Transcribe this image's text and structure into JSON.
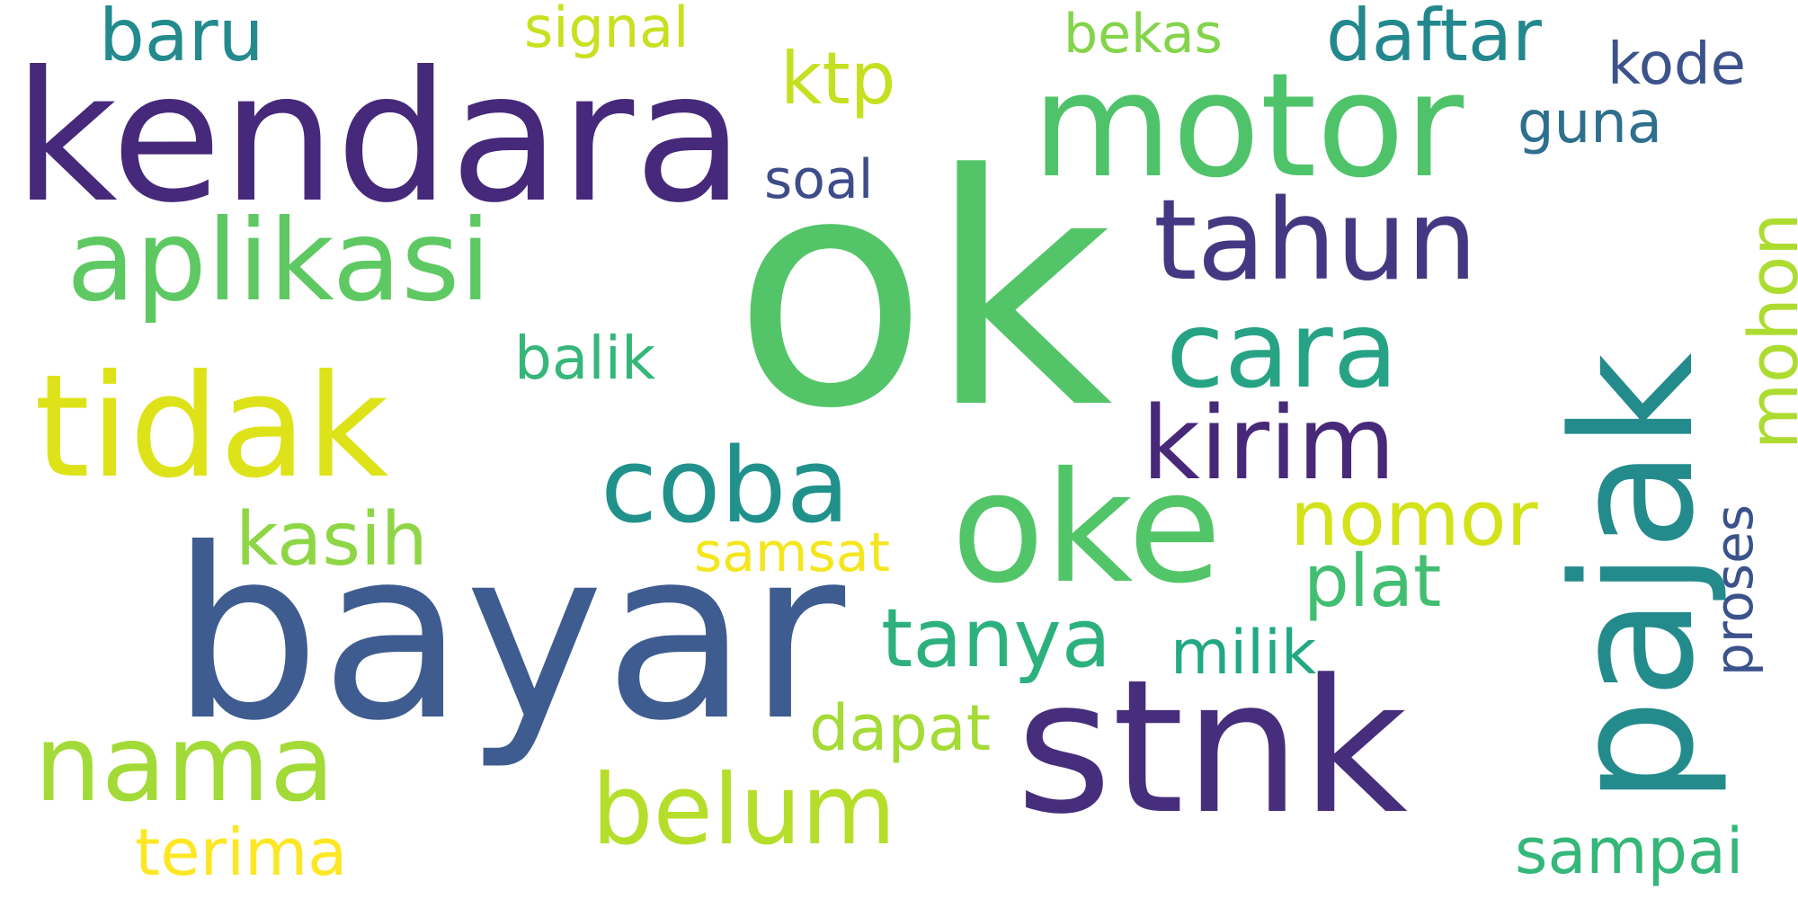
{
  "words": {
    "ok": {
      "text": "ok",
      "color": "#53c568"
    },
    "bayar": {
      "text": "bayar",
      "color": "#3e5c8f"
    },
    "stnk": {
      "text": "stnk",
      "color": "#472e7c"
    },
    "kendara": {
      "text": "kendara",
      "color": "#46297a"
    },
    "pajak": {
      "text": "pajak",
      "color": "#248b8c"
    },
    "motor": {
      "text": "motor",
      "color": "#4fc36a"
    },
    "oke": {
      "text": "oke",
      "color": "#52c569"
    },
    "tidak": {
      "text": "tidak",
      "color": "#dde318"
    },
    "aplikasi": {
      "text": "aplikasi",
      "color": "#5ec962"
    },
    "tahun": {
      "text": "tahun",
      "color": "#453882"
    },
    "cara": {
      "text": "cara",
      "color": "#26a385"
    },
    "kirim": {
      "text": "kirim",
      "color": "#482878"
    },
    "coba": {
      "text": "coba",
      "color": "#21918c"
    },
    "nama": {
      "text": "nama",
      "color": "#a2da37"
    },
    "belum": {
      "text": "belum",
      "color": "#b5de2b"
    },
    "tanya": {
      "text": "tanya",
      "color": "#2cb17e"
    },
    "nomor": {
      "text": "nomor",
      "color": "#d4e21a"
    },
    "plat": {
      "text": "plat",
      "color": "#41be71"
    },
    "kasih": {
      "text": "kasih",
      "color": "#8ed645"
    },
    "daftar": {
      "text": "daftar",
      "color": "#23888e"
    },
    "baru": {
      "text": "baru",
      "color": "#238a8d"
    },
    "ktp": {
      "text": "ktp",
      "color": "#c5e021"
    },
    "mohon": {
      "text": "mohon",
      "color": "#addc30"
    },
    "proses": {
      "text": "proses",
      "color": "#3b528b"
    },
    "sampai": {
      "text": "sampai",
      "color": "#35b779"
    },
    "terima": {
      "text": "terima",
      "color": "#fde725"
    },
    "dapat": {
      "text": "dapat",
      "color": "#a5db36"
    },
    "milik": {
      "text": "milik",
      "color": "#22a884"
    },
    "samsat": {
      "text": "samsat",
      "color": "#f4e61e"
    },
    "balik": {
      "text": "balik",
      "color": "#35b779"
    },
    "soal": {
      "text": "soal",
      "color": "#3e4c8a"
    },
    "signal": {
      "text": "signal",
      "color": "#c8e020"
    },
    "bekas": {
      "text": "bekas",
      "color": "#84d44b"
    },
    "guna": {
      "text": "guna",
      "color": "#2e6f8e"
    },
    "kode": {
      "text": "kode",
      "color": "#3b528b"
    }
  }
}
